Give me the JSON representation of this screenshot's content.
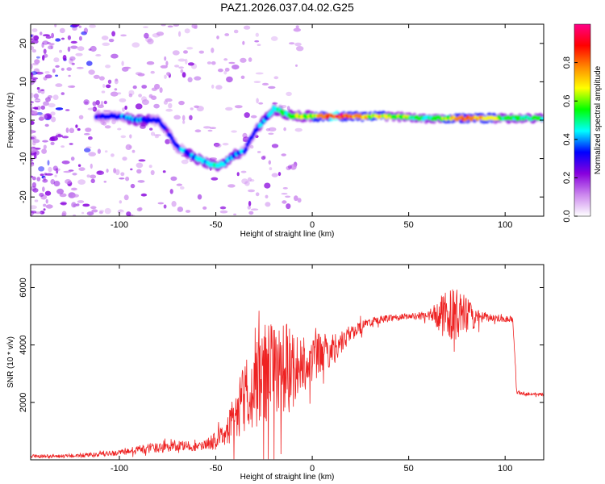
{
  "figure": {
    "title": "PAZ1.2026.037.04.02.G25"
  },
  "chart_data": [
    {
      "type": "heatmap",
      "title": "PAZ1.2026.037.04.02.G25",
      "xlabel": "Height of straight line (km)",
      "ylabel": "Frequency (Hz)",
      "xlim": [
        -146,
        120
      ],
      "ylim": [
        -25,
        25
      ],
      "xticks": [
        -100,
        -50,
        0,
        50,
        100
      ],
      "yticks": [
        20,
        10,
        0,
        -10,
        -20
      ],
      "colorbar": {
        "label": "Normalized spectral amplitude",
        "range": [
          0,
          1
        ],
        "ticks": [
          0.0,
          0.2,
          0.4,
          0.6,
          0.8
        ],
        "tick_labels": [
          "0.0",
          "0.2",
          "0.4",
          "0.6",
          "0.8"
        ],
        "colormap": [
          "#ffffff",
          "#cc88ee",
          "#8800dd",
          "#0000ff",
          "#00ffff",
          "#00ff00",
          "#ffff00",
          "#ff8800",
          "#ff0000",
          "#ff0088"
        ]
      },
      "dominant_frequency_track": {
        "x": [
          -110,
          -100,
          -90,
          -80,
          -75,
          -70,
          -60,
          -55,
          -50,
          -45,
          -40,
          -35,
          -30,
          -25,
          -20,
          -15,
          -10,
          0,
          10,
          20,
          40,
          60,
          80,
          100,
          120
        ],
        "y": [
          1,
          1,
          0,
          0,
          -3,
          -7,
          -10,
          -11,
          -12,
          -11,
          -9,
          -8,
          -3,
          0,
          3,
          2,
          1,
          1,
          1,
          1,
          1,
          0.5,
          0.5,
          0.5,
          0.5
        ],
        "peak_amplitude": [
          0.3,
          0.35,
          0.4,
          0.35,
          0.3,
          0.35,
          0.4,
          0.45,
          0.5,
          0.4,
          0.4,
          0.35,
          0.35,
          0.4,
          0.45,
          0.5,
          0.55,
          0.6,
          0.9,
          0.8,
          0.6,
          0.5,
          0.8,
          0.55,
          0.5
        ]
      }
    },
    {
      "type": "line",
      "xlabel": "Height of straight line (km)",
      "ylabel": "SNR (10 * v/v)",
      "xlim": [
        -146,
        120
      ],
      "ylim": [
        0,
        6800
      ],
      "xticks": [
        -100,
        -50,
        0,
        50,
        100
      ],
      "yticks": [
        2000,
        4000,
        6000
      ],
      "series": [
        {
          "name": "SNR",
          "color": "#ee2222",
          "x": [
            -146,
            -140,
            -130,
            -120,
            -110,
            -100,
            -90,
            -80,
            -70,
            -60,
            -55,
            -50,
            -45,
            -40,
            -35,
            -30,
            -25,
            -20,
            -15,
            -10,
            -5,
            0,
            5,
            10,
            15,
            20,
            30,
            40,
            50,
            60,
            65,
            70,
            75,
            80,
            85,
            90,
            95,
            100,
            104,
            106,
            110,
            120
          ],
          "y": [
            120,
            130,
            130,
            150,
            180,
            250,
            350,
            420,
            500,
            450,
            500,
            700,
            900,
            1500,
            2200,
            2600,
            2900,
            3100,
            3200,
            3300,
            3400,
            3500,
            3700,
            3800,
            4100,
            4400,
            4800,
            4950,
            5000,
            5000,
            5050,
            5100,
            5050,
            5000,
            4950,
            4950,
            4950,
            4900,
            4900,
            2350,
            2300,
            2280
          ],
          "noise_amplitude": [
            60,
            60,
            60,
            80,
            80,
            100,
            150,
            180,
            200,
            150,
            200,
            300,
            400,
            900,
            1300,
            1500,
            1700,
            1700,
            1600,
            1300,
            1100,
            900,
            700,
            600,
            400,
            300,
            150,
            120,
            100,
            150,
            500,
            900,
            900,
            700,
            300,
            150,
            120,
            120,
            100,
            80,
            60,
            60
          ]
        }
      ]
    }
  ]
}
